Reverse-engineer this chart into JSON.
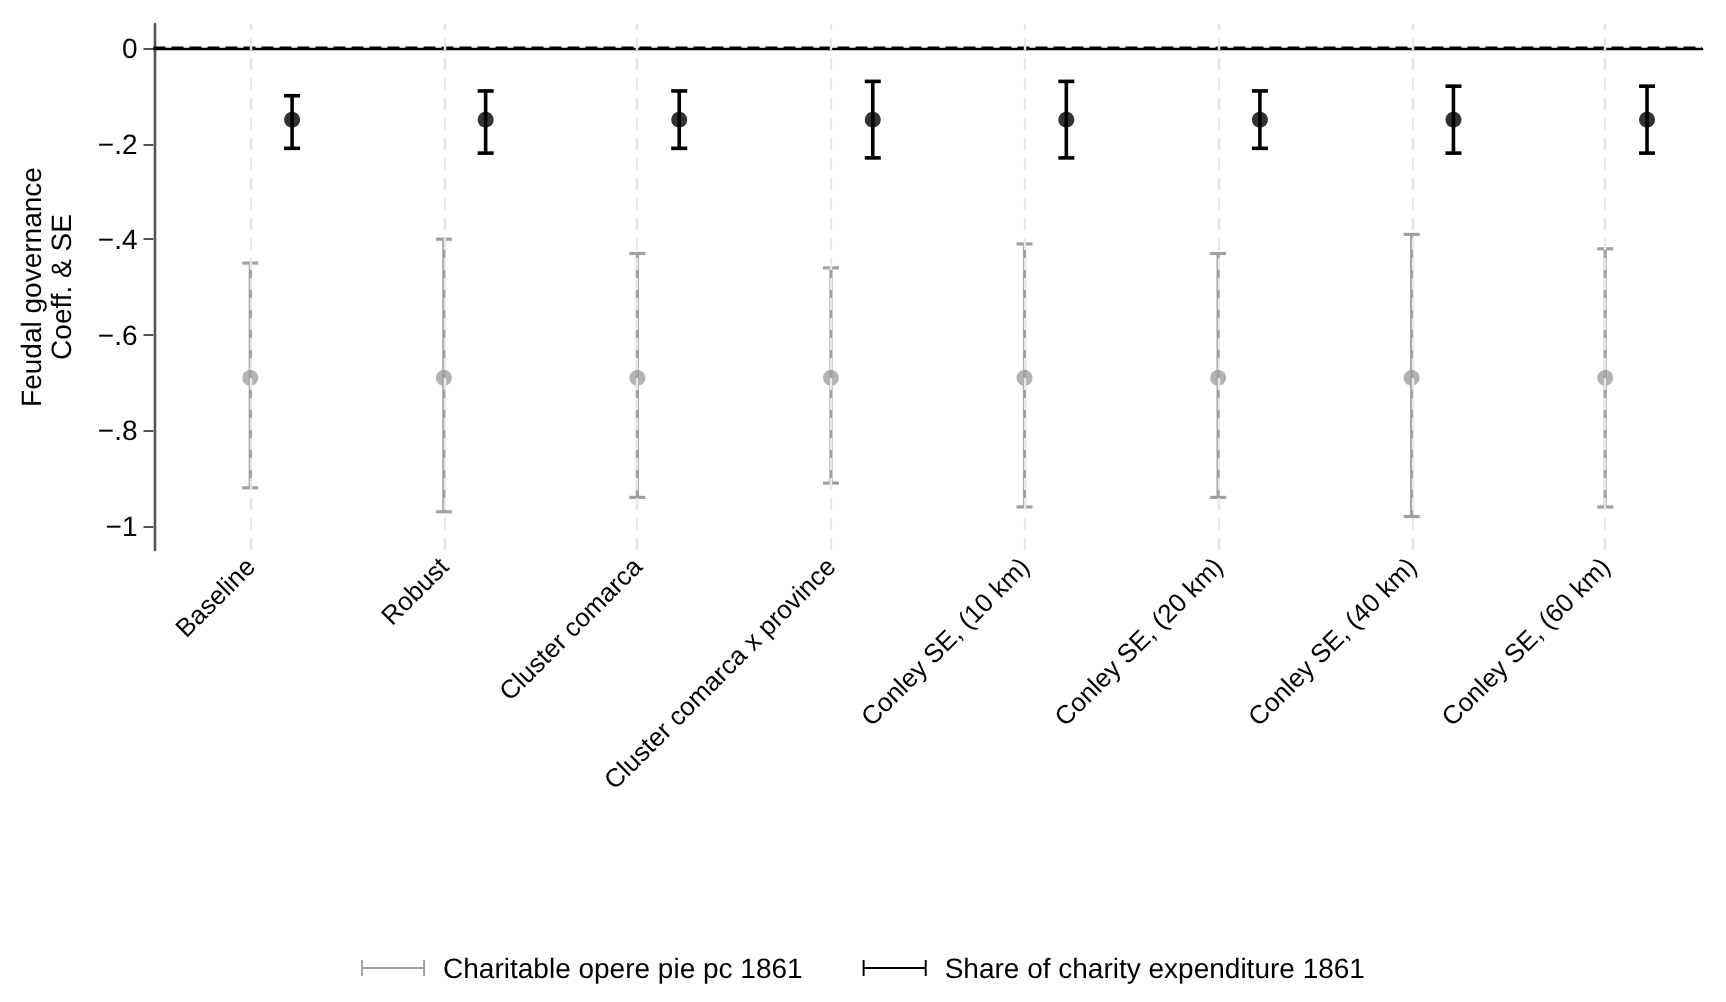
{
  "chart_data": {
    "type": "scatter",
    "ylabel": "Feudal governance\nCoeff. & SE",
    "categories": [
      "Baseline",
      "Robust",
      "Cluster comarca",
      "Cluster comarca x province",
      "Conley SE, (10 km)",
      "Conley SE, (20 km)",
      "Conley SE, (40 km)",
      "Conley SE, (60 km)"
    ],
    "series": [
      {
        "name": "Charitable opere pie pc 1861",
        "color": "#a0a0a0",
        "values": [
          -0.69,
          -0.69,
          -0.69,
          -0.69,
          -0.69,
          -0.69,
          -0.69,
          -0.69
        ],
        "errors": [
          [
            -0.92,
            -0.45
          ],
          [
            -0.97,
            -0.4
          ],
          [
            -0.94,
            -0.43
          ],
          [
            -0.91,
            -0.46
          ],
          [
            -0.96,
            -0.41
          ],
          [
            -0.94,
            -0.43
          ],
          [
            -0.98,
            -0.39
          ],
          [
            -0.96,
            -0.42
          ]
        ]
      },
      {
        "name": "Share of charity expenditure 1861",
        "color": "#000000",
        "values": [
          -0.15,
          -0.15,
          -0.15,
          -0.15,
          -0.15,
          -0.15,
          -0.15,
          -0.15
        ],
        "errors": [
          [
            -0.21,
            -0.1
          ],
          [
            -0.22,
            -0.09
          ],
          [
            -0.21,
            -0.09
          ],
          [
            -0.23,
            -0.07
          ],
          [
            -0.23,
            -0.07
          ],
          [
            -0.21,
            -0.09
          ],
          [
            -0.22,
            -0.08
          ],
          [
            -0.22,
            -0.08
          ]
        ]
      }
    ],
    "ylim": [
      -1.05,
      0.05
    ],
    "yticks": [
      {
        "value": -1,
        "label": "−1"
      },
      {
        "value": -0.8,
        "label": "−.8"
      },
      {
        "value": -0.6,
        "label": "−.6"
      },
      {
        "value": -0.4,
        "label": "−.4"
      },
      {
        "value": -0.2,
        "label": "−.2"
      },
      {
        "value": 0,
        "label": "0"
      }
    ],
    "ref_lines": [
      {
        "axis": "y",
        "value": 0,
        "color": "#000000",
        "line_style": "dashed"
      }
    ],
    "grid": "x",
    "legend": "bottom",
    "marker": "circle"
  }
}
